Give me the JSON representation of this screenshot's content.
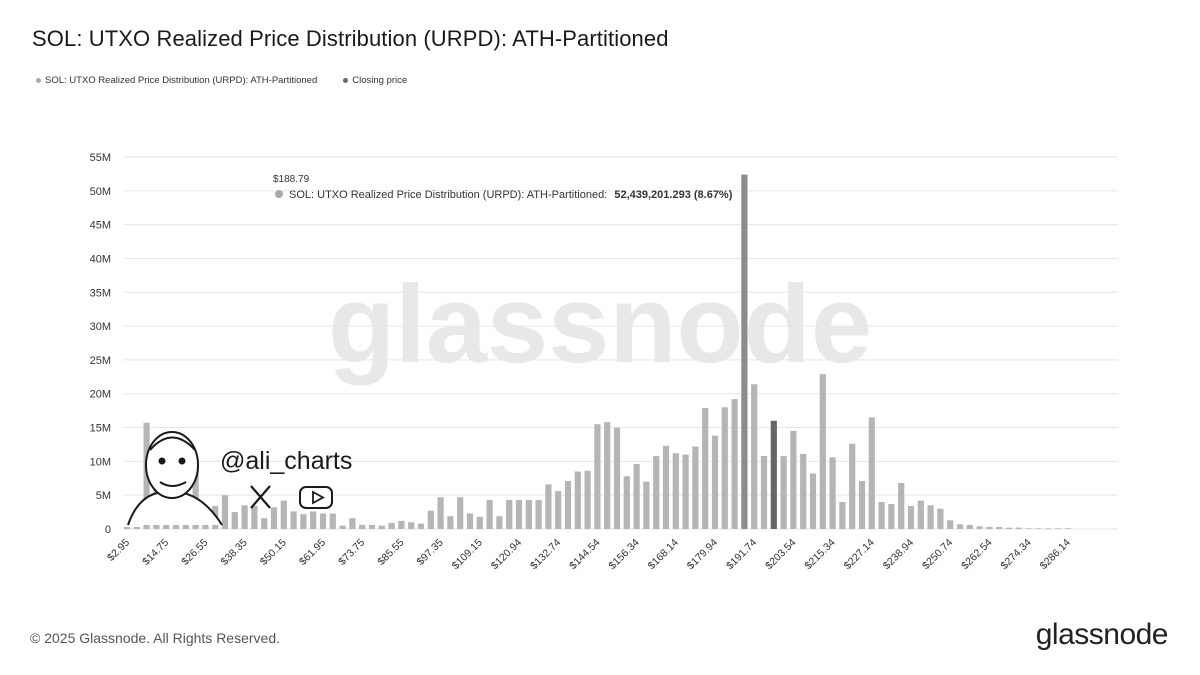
{
  "title": "SOL: UTXO Realized Price Distribution (URPD): ATH-Partitioned",
  "legend": [
    {
      "label": "SOL: UTXO Realized Price Distribution (URPD): ATH-Partitioned",
      "color": "#aaaaaa"
    },
    {
      "label": "Closing price",
      "color": "#666666"
    }
  ],
  "tooltip": {
    "price": "$188.79",
    "series": "SOL: UTXO Realized Price Distribution (URPD): ATH-Partitioned:",
    "value": "52,439,201.293 (8.67%)"
  },
  "watermark": "glassnode",
  "author": {
    "handle": "@ali_charts",
    "x_icon": "x-logo-icon",
    "youtube_icon": "youtube-icon"
  },
  "footer": {
    "copyright": "© 2025 Glassnode. All Rights Reserved.",
    "logo": "glassnode"
  },
  "colors": {
    "bar": "#b5b5b5",
    "highlight_bar": "#8c8c8c",
    "closing_bar": "#666666",
    "grid": "#e6e6e6"
  },
  "chart_data": {
    "type": "bar",
    "ylim": [
      0,
      55000000
    ],
    "y_ticks": [
      0,
      5000000,
      10000000,
      15000000,
      20000000,
      25000000,
      30000000,
      35000000,
      40000000,
      45000000,
      50000000,
      55000000
    ],
    "y_tick_labels": [
      "0",
      "5M",
      "10M",
      "15M",
      "20M",
      "25M",
      "30M",
      "35M",
      "40M",
      "45M",
      "50M",
      "55M"
    ],
    "x_tick_labels": [
      "$2.95",
      "$14.75",
      "$26.55",
      "$38.35",
      "$50.15",
      "$61.95",
      "$73.75",
      "$85.55",
      "$97.35",
      "$109.15",
      "$120.94",
      "$132.74",
      "$144.54",
      "$156.34",
      "$168.14",
      "$179.94",
      "$191.74",
      "$203.54",
      "$215.34",
      "$227.14",
      "$238.94",
      "$250.74",
      "$262.54",
      "$274.34",
      "$286.14"
    ],
    "bin_width": 2.95,
    "x_start": 2.95,
    "highlighted_index": 63,
    "closing_index": 66,
    "values": [
      0.3,
      0.3,
      15.7,
      8.8,
      2.8,
      2.9,
      4.6,
      10.1,
      2.7,
      3.4,
      5.0,
      2.5,
      3.5,
      3.4,
      1.6,
      3.2,
      4.2,
      2.6,
      2.2,
      2.6,
      2.3,
      2.3,
      0.5,
      1.6,
      0.6,
      0.6,
      0.5,
      0.9,
      1.2,
      1.0,
      0.8,
      2.7,
      4.7,
      1.9,
      4.7,
      2.3,
      1.8,
      4.3,
      1.9,
      4.3,
      4.3,
      4.3,
      4.3,
      6.6,
      5.6,
      7.1,
      8.5,
      8.6,
      15.5,
      15.8,
      15.0,
      7.8,
      9.6,
      7.0,
      10.8,
      12.3,
      11.2,
      11.0,
      12.2,
      17.9,
      13.8,
      18.0,
      19.2,
      52.4,
      21.4,
      10.8,
      16.0,
      10.8,
      14.5,
      11.1,
      8.2,
      22.9,
      10.6,
      4.0,
      12.6,
      7.1,
      16.5,
      4.0,
      3.7,
      6.8,
      3.4,
      4.2,
      3.5,
      3.0,
      1.3,
      0.7,
      0.6,
      0.4,
      0.3,
      0.3,
      0.2,
      0.2,
      0.1,
      0.1,
      0.1,
      0.1,
      0.1
    ],
    "values_unit": "millions"
  }
}
